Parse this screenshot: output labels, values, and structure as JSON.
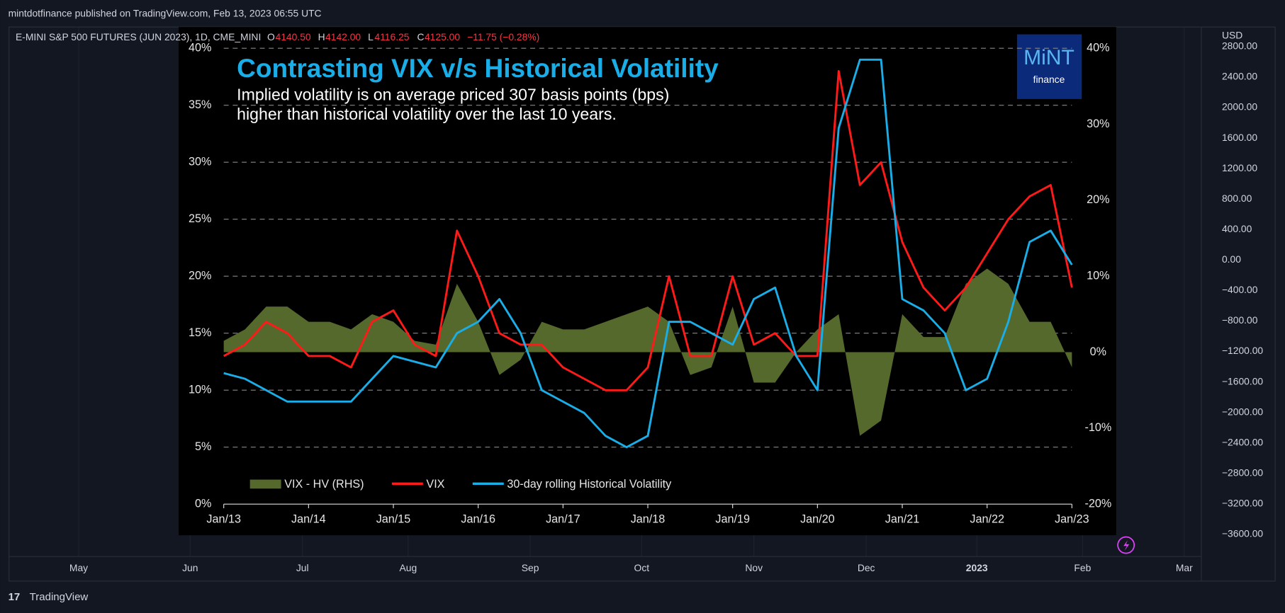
{
  "header": {
    "publisher": "mintdotfinance published on TradingView.com, Feb 13, 2023 06:55 UTC"
  },
  "symbol": {
    "name": "E-MINI S&P 500 FUTURES (JUN 2023), 1D, CME_MINI",
    "o_label": "O",
    "o": "4140.50",
    "h_label": "H",
    "h": "4142.00",
    "l_label": "L",
    "l": "4116.25",
    "c_label": "C",
    "c": "4125.00",
    "change": "−11.75 (−0.28%)"
  },
  "price_axis": {
    "currency": "USD",
    "labels": [
      "2800.00",
      "2400.00",
      "2000.00",
      "1600.00",
      "1200.00",
      "800.00",
      "400.00",
      "0.00",
      "−400.00",
      "−800.00",
      "−1200.00",
      "−1600.00",
      "−2000.00",
      "−2400.00",
      "−2800.00",
      "−3200.00",
      "−3600.00"
    ]
  },
  "time_axis": {
    "labels": [
      "May",
      "Jun",
      "Jul",
      "Aug",
      "Sep",
      "Oct",
      "Nov",
      "Dec",
      "2023",
      "Feb",
      "Mar"
    ]
  },
  "footer": {
    "brand": "TradingView"
  },
  "logo": {
    "name": "MiNT",
    "sub": "finance"
  },
  "chart_data": {
    "type": "line",
    "title": "Contrasting VIX v/s Historical Volatility",
    "subtitle": [
      "Implied volatility is on average priced 307 basis points (bps)",
      "higher than historical volatility over the last 10 years."
    ],
    "x": [
      2013,
      2013.25,
      2013.5,
      2013.75,
      2014,
      2014.25,
      2014.5,
      2014.75,
      2015,
      2015.25,
      2015.5,
      2015.75,
      2016,
      2016.25,
      2016.5,
      2016.75,
      2017,
      2017.25,
      2017.5,
      2017.75,
      2018,
      2018.25,
      2018.5,
      2018.75,
      2019,
      2019.25,
      2019.5,
      2019.75,
      2020,
      2020.25,
      2020.5,
      2020.75,
      2021,
      2021.25,
      2021.5,
      2021.75,
      2022,
      2022.25,
      2022.5,
      2022.75,
      2023
    ],
    "series": [
      {
        "name": "VIX - HV (RHS)",
        "color": "#56692c",
        "axis": "y2",
        "kind": "area",
        "values": [
          1.5,
          3,
          6,
          6,
          4,
          4,
          3,
          5,
          4,
          1.5,
          1,
          9,
          4,
          -3,
          -1,
          4,
          3,
          3,
          4,
          5,
          6,
          4,
          -3,
          -2,
          6,
          -4,
          -4,
          0,
          3,
          5,
          -11,
          -9,
          5,
          2,
          2,
          9,
          11,
          9,
          4,
          4,
          -2
        ]
      },
      {
        "name": "VIX",
        "color": "#ff1a1a",
        "axis": "y",
        "values": [
          13,
          14,
          16,
          15,
          13,
          13,
          12,
          16,
          17,
          14,
          13,
          24,
          20,
          15,
          14,
          14,
          12,
          11,
          10,
          10,
          12,
          20,
          13,
          13,
          20,
          14,
          15,
          13,
          13,
          38,
          28,
          30,
          23,
          19,
          17,
          19,
          22,
          25,
          27,
          28,
          19
        ]
      },
      {
        "name": "30-day rolling Historical Volatility",
        "color": "#1aaee8",
        "axis": "y",
        "values": [
          11.5,
          11,
          10,
          9,
          9,
          9,
          9,
          11,
          13,
          12.5,
          12,
          15,
          16,
          18,
          15,
          10,
          9,
          8,
          6,
          5,
          6,
          16,
          16,
          15,
          14,
          18,
          19,
          13,
          10,
          33,
          39,
          39,
          18,
          17,
          15,
          10,
          11,
          16,
          23,
          24,
          21
        ]
      }
    ],
    "xlim": [
      2013,
      2023
    ],
    "xticks": [
      {
        "value": 2013,
        "label": "Jan/13"
      },
      {
        "value": 2014,
        "label": "Jan/14"
      },
      {
        "value": 2015,
        "label": "Jan/15"
      },
      {
        "value": 2016,
        "label": "Jan/16"
      },
      {
        "value": 2017,
        "label": "Jan/17"
      },
      {
        "value": 2018,
        "label": "Jan/18"
      },
      {
        "value": 2019,
        "label": "Jan/19"
      },
      {
        "value": 2020,
        "label": "Jan/20"
      },
      {
        "value": 2021,
        "label": "Jan/21"
      },
      {
        "value": 2022,
        "label": "Jan/22"
      },
      {
        "value": 2023,
        "label": "Jan/23"
      }
    ],
    "ylim": [
      0,
      40
    ],
    "yticks": [
      {
        "value": 0,
        "label": "0%"
      },
      {
        "value": 5,
        "label": "5%"
      },
      {
        "value": 10,
        "label": "10%"
      },
      {
        "value": 15,
        "label": "15%"
      },
      {
        "value": 20,
        "label": "20%"
      },
      {
        "value": 25,
        "label": "25%"
      },
      {
        "value": 30,
        "label": "30%"
      },
      {
        "value": 35,
        "label": "35%"
      },
      {
        "value": 40,
        "label": "40%"
      }
    ],
    "y2lim": [
      -20,
      40
    ],
    "y2ticks": [
      {
        "value": -20,
        "label": "-20%"
      },
      {
        "value": -10,
        "label": "-10%"
      },
      {
        "value": 0,
        "label": "0%"
      },
      {
        "value": 10,
        "label": "10%"
      },
      {
        "value": 20,
        "label": "20%"
      },
      {
        "value": 30,
        "label": "30%"
      },
      {
        "value": 40,
        "label": "40%"
      }
    ],
    "grid": true,
    "legend": "bottom-left"
  }
}
